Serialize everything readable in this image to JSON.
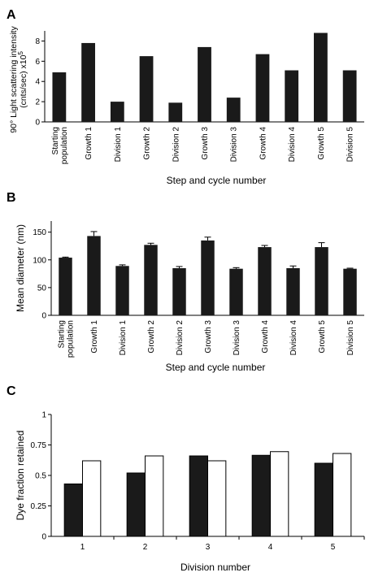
{
  "chart_data": [
    {
      "panel": "A",
      "type": "bar",
      "categories": [
        "Starting population",
        "Growth 1",
        "Division 1",
        "Growth 2",
        "Division 2",
        "Growth 3",
        "Division 3",
        "Growth 4",
        "Division 4",
        "Growth 5",
        "Division 5"
      ],
      "values": [
        4.9,
        7.8,
        2.0,
        6.5,
        1.9,
        7.4,
        2.4,
        6.7,
        5.1,
        8.8,
        5.1
      ],
      "ylabel_line1": "90° Light scattering intensity",
      "ylabel_line2": "(cnts/sec) x10",
      "ylabel_exp": "5",
      "xlabel": "Step and cycle number",
      "yticks": [
        0,
        2,
        4,
        6,
        8
      ],
      "ylim": [
        0,
        9
      ],
      "bar_color": "#1a1a1a"
    },
    {
      "panel": "B",
      "type": "bar",
      "categories": [
        "Starting population",
        "Growth 1",
        "Division 1",
        "Growth 2",
        "Division 2",
        "Growth 3",
        "Division 3",
        "Growth 4",
        "Division 4",
        "Growth 5",
        "Division 5"
      ],
      "values": [
        104,
        143,
        89,
        127,
        85,
        135,
        84,
        123,
        85,
        123,
        84
      ],
      "errors": [
        1,
        8,
        2,
        3,
        3,
        6,
        2,
        3,
        4,
        8,
        1
      ],
      "ylabel": "Mean diameter (nm)",
      "xlabel": "Step and cycle number",
      "yticks": [
        0,
        50,
        100,
        150
      ],
      "ylim": [
        0,
        170
      ],
      "bar_color": "#1a1a1a"
    },
    {
      "panel": "C",
      "type": "bar",
      "categories": [
        "1",
        "2",
        "3",
        "4",
        "5"
      ],
      "series": [
        {
          "values": [
            0.43,
            0.52,
            0.66,
            0.665,
            0.6
          ],
          "color": "#1a1a1a"
        },
        {
          "values": [
            0.62,
            0.66,
            0.62,
            0.695,
            0.68
          ],
          "color": "#ffffff"
        }
      ],
      "ylabel": "Dye fraction retained",
      "xlabel": "Division number",
      "yticks": [
        "0",
        "0.25",
        "0.5",
        "0.75",
        "1"
      ],
      "ylim": [
        0,
        1
      ]
    }
  ]
}
